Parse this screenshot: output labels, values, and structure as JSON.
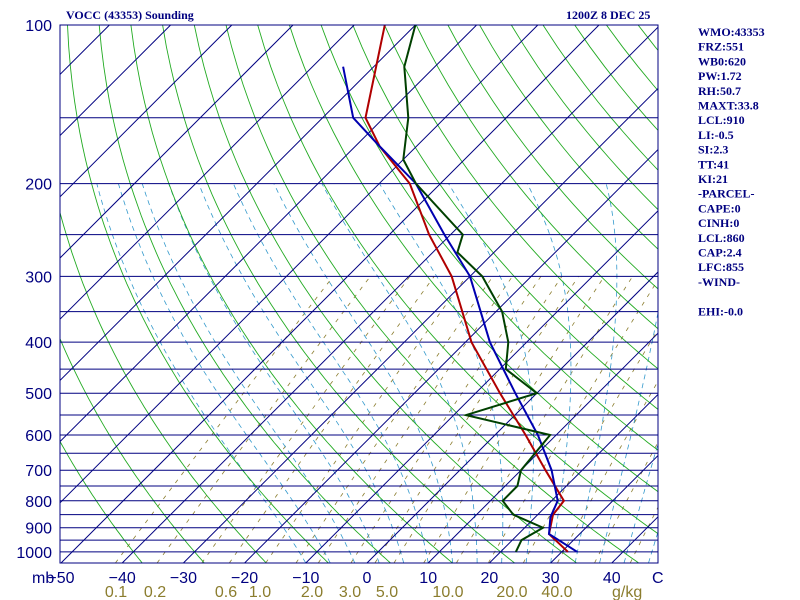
{
  "header": {
    "station": "VOCC (43353) Sounding",
    "time": "1200Z  8 DEC 25"
  },
  "indices": [
    "WMO:43353",
    "FRZ:551",
    "WB0:620",
    "PW:1.72",
    "RH:50.7",
    "MAXT:33.8",
    "LCL:910",
    "LI:-0.5",
    "SI:2.3",
    "TT:41",
    "KI:21",
    "-PARCEL-",
    "CAPE:0",
    "CINH:0",
    "LCL:860",
    "CAP:2.4",
    "LFC:855",
    "-WIND-",
    "",
    "EHI:-0.0"
  ],
  "chart_data": {
    "type": "line",
    "title": "VOCC (43353) Sounding",
    "pressure_unit": "mb",
    "temperature_unit": "C",
    "mixing_ratio_unit": "g/kg",
    "pressure_labels": [
      100,
      200,
      300,
      400,
      500,
      600,
      700,
      800,
      900,
      1000
    ],
    "temperature_labels": [
      -50,
      -40,
      -30,
      -20,
      -10,
      0,
      10,
      20,
      30,
      40
    ],
    "mixing_ratio_labels": [
      "0.1",
      "0.2",
      "0.6",
      "1.0",
      "2.0",
      "3.0",
      "5.0",
      "10.0",
      "20.0",
      "40.0"
    ],
    "grid": true,
    "colors": {
      "isobar": "#000080",
      "isotherm": "#000080",
      "dry_adiabat": "#22aa22",
      "moist_adiabat": "#3399cc",
      "mixing_ratio": "#8b7d2e",
      "temperature": "#b00000",
      "parcel": "#0000b0",
      "dewpoint": "#004000"
    },
    "series": [
      {
        "name": "temperature",
        "points": [
          [
            1000,
            31
          ],
          [
            925,
            25
          ],
          [
            850,
            22.5
          ],
          [
            800,
            22
          ],
          [
            700,
            14
          ],
          [
            600,
            5
          ],
          [
            500,
            -6
          ],
          [
            400,
            -19
          ],
          [
            300,
            -33
          ],
          [
            250,
            -43.5
          ],
          [
            200,
            -55
          ],
          [
            170,
            -66
          ],
          [
            150,
            -73
          ],
          [
            100,
            -85
          ]
        ]
      },
      {
        "name": "parcel",
        "points": [
          [
            1000,
            32.5
          ],
          [
            925,
            25
          ],
          [
            860,
            22.5
          ],
          [
            800,
            21
          ],
          [
            700,
            15
          ],
          [
            600,
            7
          ],
          [
            500,
            -3.5
          ],
          [
            400,
            -16
          ],
          [
            300,
            -30
          ],
          [
            250,
            -41
          ],
          [
            200,
            -54
          ],
          [
            170,
            -66
          ],
          [
            150,
            -75
          ],
          [
            120,
            -85
          ]
        ]
      },
      {
        "name": "dewpoint",
        "points": [
          [
            1000,
            22.5
          ],
          [
            950,
            21.5
          ],
          [
            900,
            23
          ],
          [
            850,
            16
          ],
          [
            800,
            12
          ],
          [
            750,
            12
          ],
          [
            700,
            10
          ],
          [
            600,
            9
          ],
          [
            550,
            -8
          ],
          [
            500,
            0
          ],
          [
            450,
            -9
          ],
          [
            400,
            -13
          ],
          [
            350,
            -19
          ],
          [
            300,
            -28
          ],
          [
            270,
            -36
          ],
          [
            250,
            -38
          ],
          [
            200,
            -54
          ],
          [
            180,
            -60
          ],
          [
            150,
            -66
          ],
          [
            120,
            -75
          ],
          [
            100,
            -80
          ]
        ]
      }
    ]
  }
}
